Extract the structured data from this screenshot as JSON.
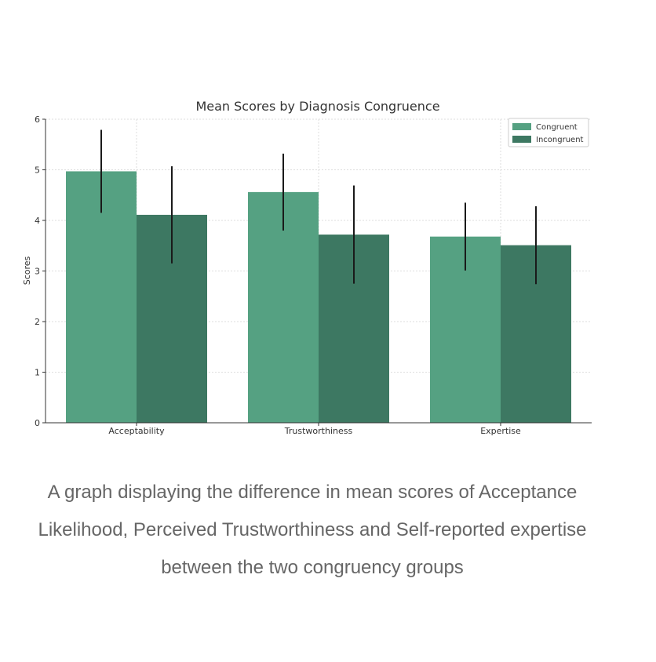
{
  "chart_data": {
    "type": "bar",
    "title": "Mean Scores by Diagnosis Congruence",
    "xlabel": "",
    "ylabel": "Scores",
    "ylim": [
      0,
      6
    ],
    "yticks": [
      0,
      1,
      2,
      3,
      4,
      5,
      6
    ],
    "grid": true,
    "legend_position": "top-right",
    "categories": [
      "Acceptability",
      "Trustworthiness",
      "Expertise"
    ],
    "series": [
      {
        "name": "Congruent",
        "color": "#55a182",
        "values": [
          4.97,
          4.56,
          3.68
        ],
        "errors": [
          0.82,
          0.76,
          0.67
        ]
      },
      {
        "name": "Incongruent",
        "color": "#3d7862",
        "values": [
          4.11,
          3.72,
          3.51
        ],
        "errors": [
          0.96,
          0.97,
          0.77
        ]
      }
    ]
  },
  "caption": "A graph displaying the difference in mean scores of Acceptance Likelihood, Perceived Trustworthiness and Self-reported expertise between the two congruency groups"
}
